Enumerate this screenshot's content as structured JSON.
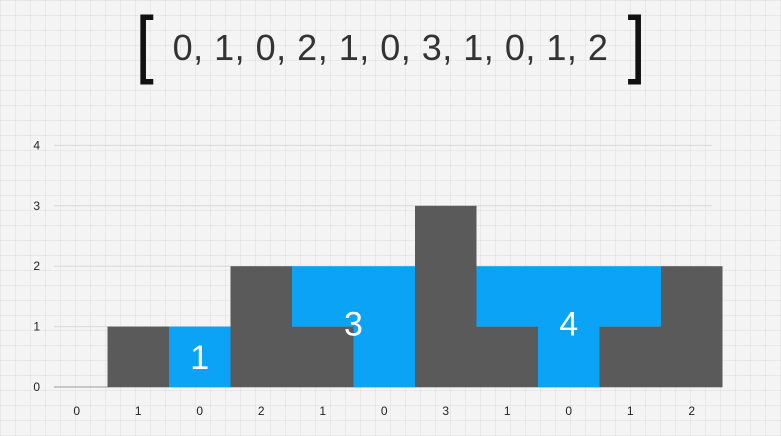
{
  "array_display": {
    "open": "[",
    "text": "0, 1, 0, 2, 1, 0, 3, 1, 0, 1, 2",
    "close": "]"
  },
  "colors": {
    "bar": "#5a5a5a",
    "water": "#0aa3f5",
    "gridline": "#d8d8d8",
    "axis": "#9a9a9a"
  },
  "chart_data": {
    "type": "bar",
    "categories": [
      "0",
      "1",
      "0",
      "2",
      "1",
      "0",
      "3",
      "1",
      "0",
      "1",
      "2"
    ],
    "series": [
      {
        "values": [
          0,
          1,
          0,
          2,
          1,
          0,
          3,
          1,
          0,
          1,
          2
        ]
      },
      {
        "values": [
          0,
          0,
          1,
          0,
          1,
          2,
          0,
          1,
          2,
          1,
          0
        ]
      }
    ],
    "ylim": [
      0,
      4
    ],
    "yticks": [
      0,
      1,
      2,
      3,
      4
    ],
    "grid": true,
    "annotations": [
      {
        "text": "1",
        "x_index": 2,
        "y": 0.5
      },
      {
        "text": "3",
        "x_index": 4.5,
        "y": 1.05
      },
      {
        "text": "4",
        "x_index": 8,
        "y": 1.05
      }
    ]
  }
}
